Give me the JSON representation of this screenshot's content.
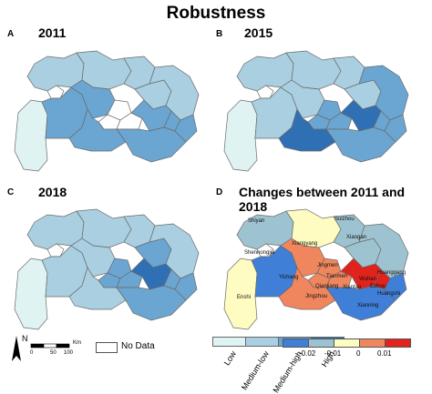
{
  "title": "Robustness",
  "panels": [
    {
      "label": "A",
      "title": "2011"
    },
    {
      "label": "B",
      "title": "2015"
    },
    {
      "label": "C",
      "title": "2018"
    },
    {
      "label": "D",
      "title": "Changes between 2011 and 2018"
    }
  ],
  "legend_main": {
    "classes": [
      "Low",
      "Medium-low",
      "Medium-high",
      "High"
    ],
    "colors": [
      "#e0f3f3",
      "#a9cfe0",
      "#6aa6d1",
      "#2f6fb3"
    ],
    "no_data": "No Data"
  },
  "scale_bar": {
    "ticks": [
      "0",
      "50",
      "100"
    ],
    "unit": "Km",
    "north": "N"
  },
  "legend_change": {
    "labels": [
      "-0.02",
      "-0.01",
      "0",
      "0.01"
    ],
    "colors": [
      "#3f7fd8",
      "#9ec3d0",
      "#fefcc0",
      "#f0865e",
      "#e0231c"
    ]
  },
  "cities": [
    "Shiyan",
    "Xiangyang",
    "Suizhou",
    "Shennongjia",
    "Xiaogan",
    "Huanggang",
    "Jingmen",
    "Yichang",
    "Tianmen",
    "Wuhan",
    "Ezhou",
    "Enshi",
    "Jingzhou",
    "Qianjiang",
    "Xiantao",
    "Huangshi",
    "Xianning"
  ],
  "colors": {
    "border": "#4a4a4a",
    "nodata": "#ffffff"
  }
}
